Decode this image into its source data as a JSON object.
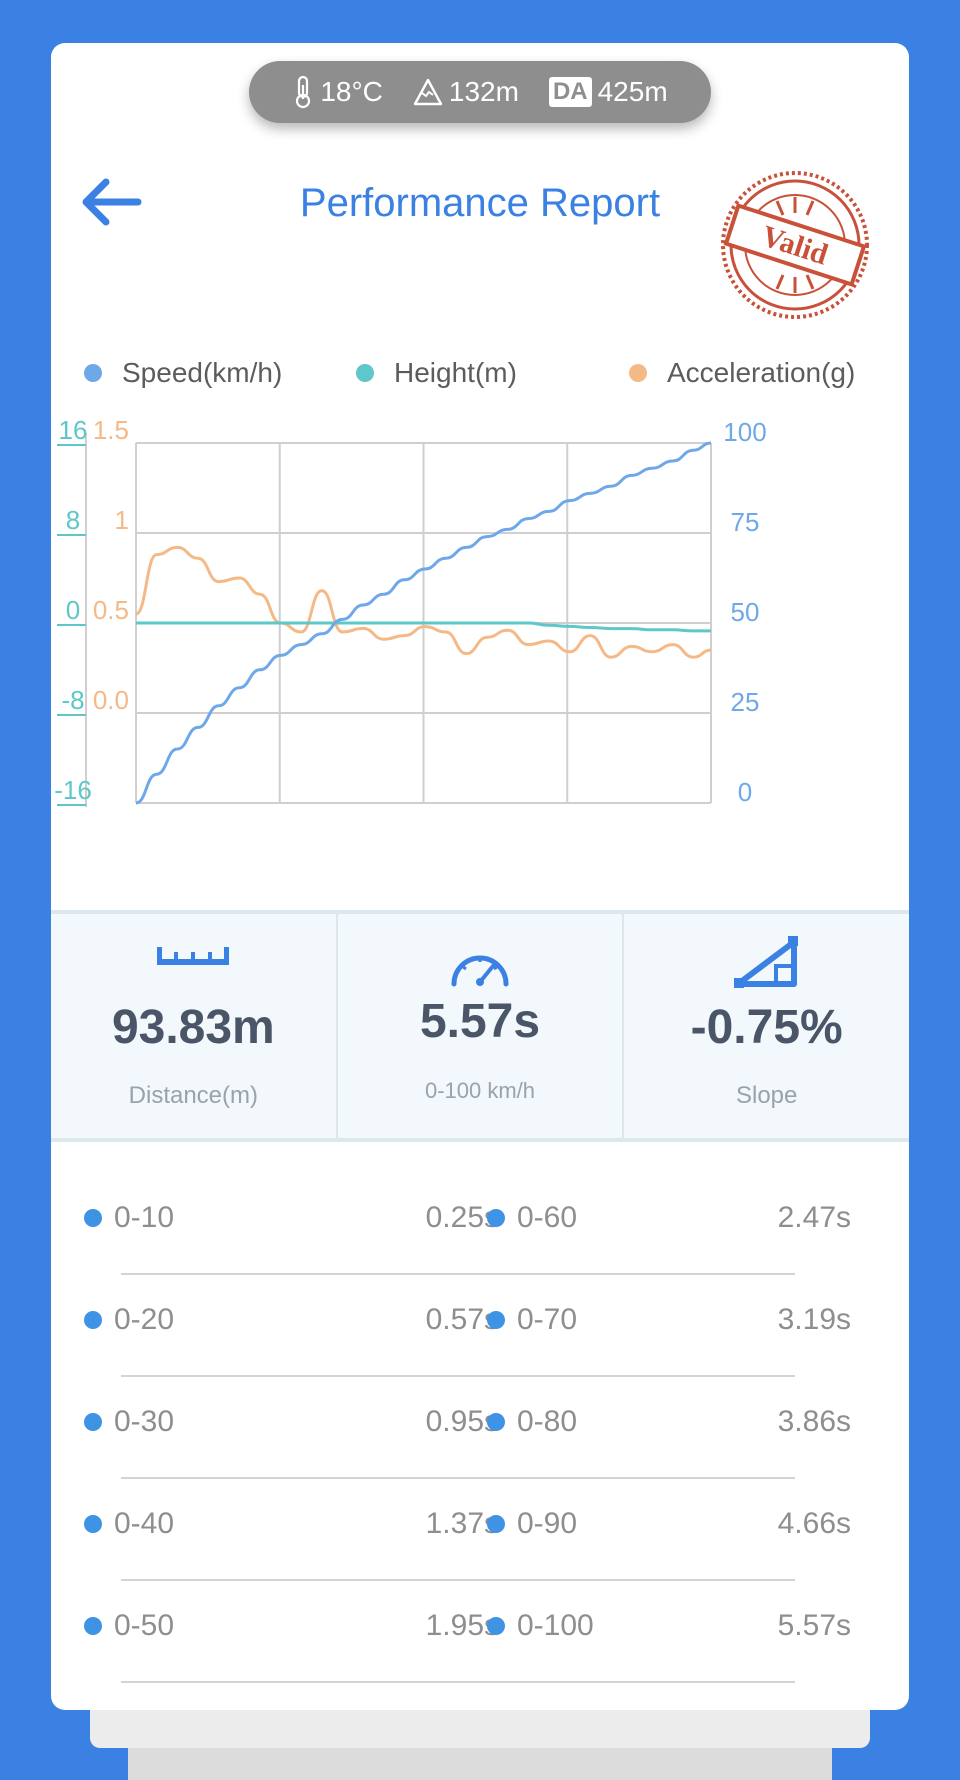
{
  "env": {
    "temperature": "18°C",
    "altitude": "132m",
    "da_badge": "DA",
    "density_altitude": "425m"
  },
  "header": {
    "title": "Performance Report",
    "stamp_text": "Valid"
  },
  "legend": [
    {
      "label": "Speed(km/h)",
      "color": "#6fa8e8"
    },
    {
      "label": "Height(m)",
      "color": "#5ec7c9"
    },
    {
      "label": "Acceleration(g)",
      "color": "#f5b987"
    }
  ],
  "chart_data": {
    "type": "line",
    "x": [
      0.0,
      0.2,
      0.4,
      0.6,
      0.8,
      1.0,
      1.2,
      1.4,
      1.6,
      1.8,
      2.0,
      2.2,
      2.4,
      2.6,
      2.8,
      3.0,
      3.2,
      3.4,
      3.6,
      3.8,
      4.0,
      4.2,
      4.4,
      4.6,
      4.8,
      5.0,
      5.2,
      5.4,
      5.57
    ],
    "grid": true,
    "axes": {
      "height": {
        "side": "left-outer",
        "ticks": [
          "16",
          "8",
          "0",
          "-8",
          "-16"
        ],
        "range": [
          -16,
          16
        ]
      },
      "acceleration": {
        "side": "left-inner",
        "ticks": [
          "1.5",
          "1",
          "0.5",
          "0.0"
        ],
        "range": [
          -0.5,
          1.5
        ]
      },
      "speed": {
        "side": "right",
        "ticks": [
          "100",
          "75",
          "50",
          "25",
          "0"
        ],
        "range": [
          0,
          100
        ]
      }
    },
    "series": [
      {
        "name": "Speed(km/h)",
        "axis": "speed",
        "values": [
          0,
          8,
          15,
          21,
          27,
          32,
          37,
          41,
          44,
          47,
          51,
          55,
          58,
          62,
          65,
          68,
          71,
          74,
          76,
          79,
          81,
          84,
          86,
          88,
          91,
          93,
          95,
          98,
          100
        ]
      },
      {
        "name": "Height(m)",
        "axis": "height",
        "values": [
          0,
          0,
          0,
          0,
          0,
          0,
          0,
          0,
          0,
          0,
          0,
          0,
          0,
          0,
          0,
          0,
          0,
          0,
          0,
          0,
          -0.2,
          -0.3,
          -0.4,
          -0.5,
          -0.5,
          -0.6,
          -0.6,
          -0.7,
          -0.7
        ]
      },
      {
        "name": "Acceleration(g)",
        "axis": "acceleration",
        "values": [
          0.55,
          0.88,
          0.92,
          0.86,
          0.73,
          0.75,
          0.66,
          0.5,
          0.45,
          0.68,
          0.45,
          0.47,
          0.41,
          0.43,
          0.48,
          0.45,
          0.33,
          0.42,
          0.46,
          0.38,
          0.4,
          0.34,
          0.43,
          0.31,
          0.37,
          0.34,
          0.38,
          0.31,
          0.35
        ]
      }
    ]
  },
  "stats": [
    {
      "icon": "ruler-icon",
      "value": "93.83m",
      "label": "Distance(m)"
    },
    {
      "icon": "speedometer-icon",
      "value": "5.57s",
      "label": "0-100 km/h"
    },
    {
      "icon": "slope-icon",
      "value": "-0.75%",
      "label": "Slope"
    }
  ],
  "splits": [
    {
      "left": {
        "label": "0-10",
        "time": "0.25s"
      },
      "right": {
        "label": "0-60",
        "time": "2.47s"
      }
    },
    {
      "left": {
        "label": "0-20",
        "time": "0.57s"
      },
      "right": {
        "label": "0-70",
        "time": "3.19s"
      }
    },
    {
      "left": {
        "label": "0-30",
        "time": "0.95s"
      },
      "right": {
        "label": "0-80",
        "time": "3.86s"
      }
    },
    {
      "left": {
        "label": "0-40",
        "time": "1.37s"
      },
      "right": {
        "label": "0-90",
        "time": "4.66s"
      }
    },
    {
      "left": {
        "label": "0-50",
        "time": "1.95s"
      },
      "right": {
        "label": "0-100",
        "time": "5.57s"
      }
    }
  ]
}
